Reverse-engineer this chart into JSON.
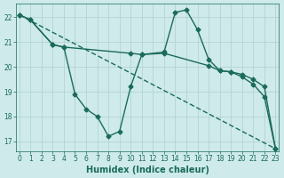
{
  "xlabel": "Humidex (Indice chaleur)",
  "bg_color": "#ceeaea",
  "grid_color": "#afd0d0",
  "line_color": "#1a6b5a",
  "series1_x": [
    0,
    1,
    3,
    4,
    5,
    6,
    7,
    8,
    9,
    10,
    11,
    13,
    14,
    15,
    16,
    17,
    18,
    19,
    20,
    21,
    22,
    23
  ],
  "series1_y": [
    22.1,
    21.9,
    20.9,
    20.8,
    18.9,
    18.3,
    18.0,
    17.2,
    17.4,
    19.2,
    20.5,
    20.6,
    22.2,
    22.3,
    21.5,
    20.3,
    19.85,
    19.8,
    19.6,
    19.3,
    18.8,
    16.7
  ],
  "series2_x": [
    0,
    23
  ],
  "series2_y": [
    22.1,
    16.7
  ],
  "series3_x": [
    0,
    1,
    3,
    4,
    10,
    11,
    13,
    17,
    18,
    19,
    20,
    21,
    22,
    23
  ],
  "series3_y": [
    22.1,
    21.9,
    20.9,
    20.8,
    20.55,
    20.5,
    20.55,
    20.05,
    19.85,
    19.8,
    19.7,
    19.5,
    19.2,
    16.7
  ],
  "xlim": [
    -0.3,
    23.3
  ],
  "ylim": [
    16.6,
    22.55
  ],
  "xticks": [
    0,
    1,
    2,
    3,
    4,
    5,
    6,
    7,
    8,
    9,
    10,
    11,
    12,
    13,
    14,
    15,
    16,
    17,
    18,
    19,
    20,
    21,
    22,
    23
  ],
  "yticks": [
    17,
    18,
    19,
    20,
    21,
    22
  ],
  "marker": "D",
  "markersize": 2.5,
  "linewidth": 1.0,
  "tick_fontsize": 5.5,
  "xlabel_fontsize": 7
}
